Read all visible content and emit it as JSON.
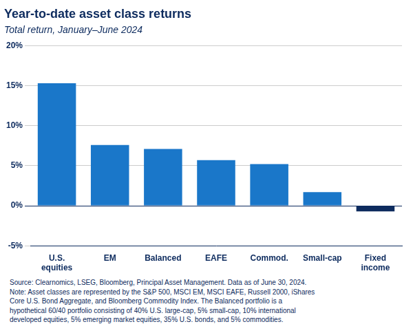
{
  "chart_data": {
    "type": "bar",
    "title": "Year-to-date asset class returns",
    "subtitle": "Total return, January–June 2024",
    "footnote": "Source: Clearnomics, LSEG, Bloomberg, Principal Asset Management. Data as of June 30, 2024.\nNote: Asset classes are represented by the S&P 500, MSCI EM, MSCI EAFE, Russell 2000, iShares\nCore U.S. Bond Aggregate, and Bloomberg Commodity Index. The Balanced portfolio is a\nhypothetical 60/40 portfolio consisting of 40% U.S. large-cap, 5% small-cap, 10% international\ndeveloped equities, 5% emerging market equities, 35% U.S. bonds, and 5% commodities.",
    "categories": [
      "U.S.\nequities",
      "EM",
      "Balanced",
      "EAFE",
      "Commod.",
      "Small-cap",
      "Fixed\nincome"
    ],
    "values": [
      15.3,
      7.6,
      7.1,
      5.7,
      5.2,
      1.7,
      -0.7
    ],
    "colors": [
      "#1a77c9",
      "#1a77c9",
      "#1a77c9",
      "#1a77c9",
      "#1a77c9",
      "#1a77c9",
      "#0d2b5e"
    ],
    "ylim": [
      -5,
      20
    ],
    "yticks": [
      {
        "value": -5,
        "label": "-5%"
      },
      {
        "value": 0,
        "label": "0%"
      },
      {
        "value": 5,
        "label": "5%"
      },
      {
        "value": 10,
        "label": "10%"
      },
      {
        "value": 15,
        "label": "15%"
      },
      {
        "value": 20,
        "label": "20%"
      }
    ],
    "grid": true
  }
}
